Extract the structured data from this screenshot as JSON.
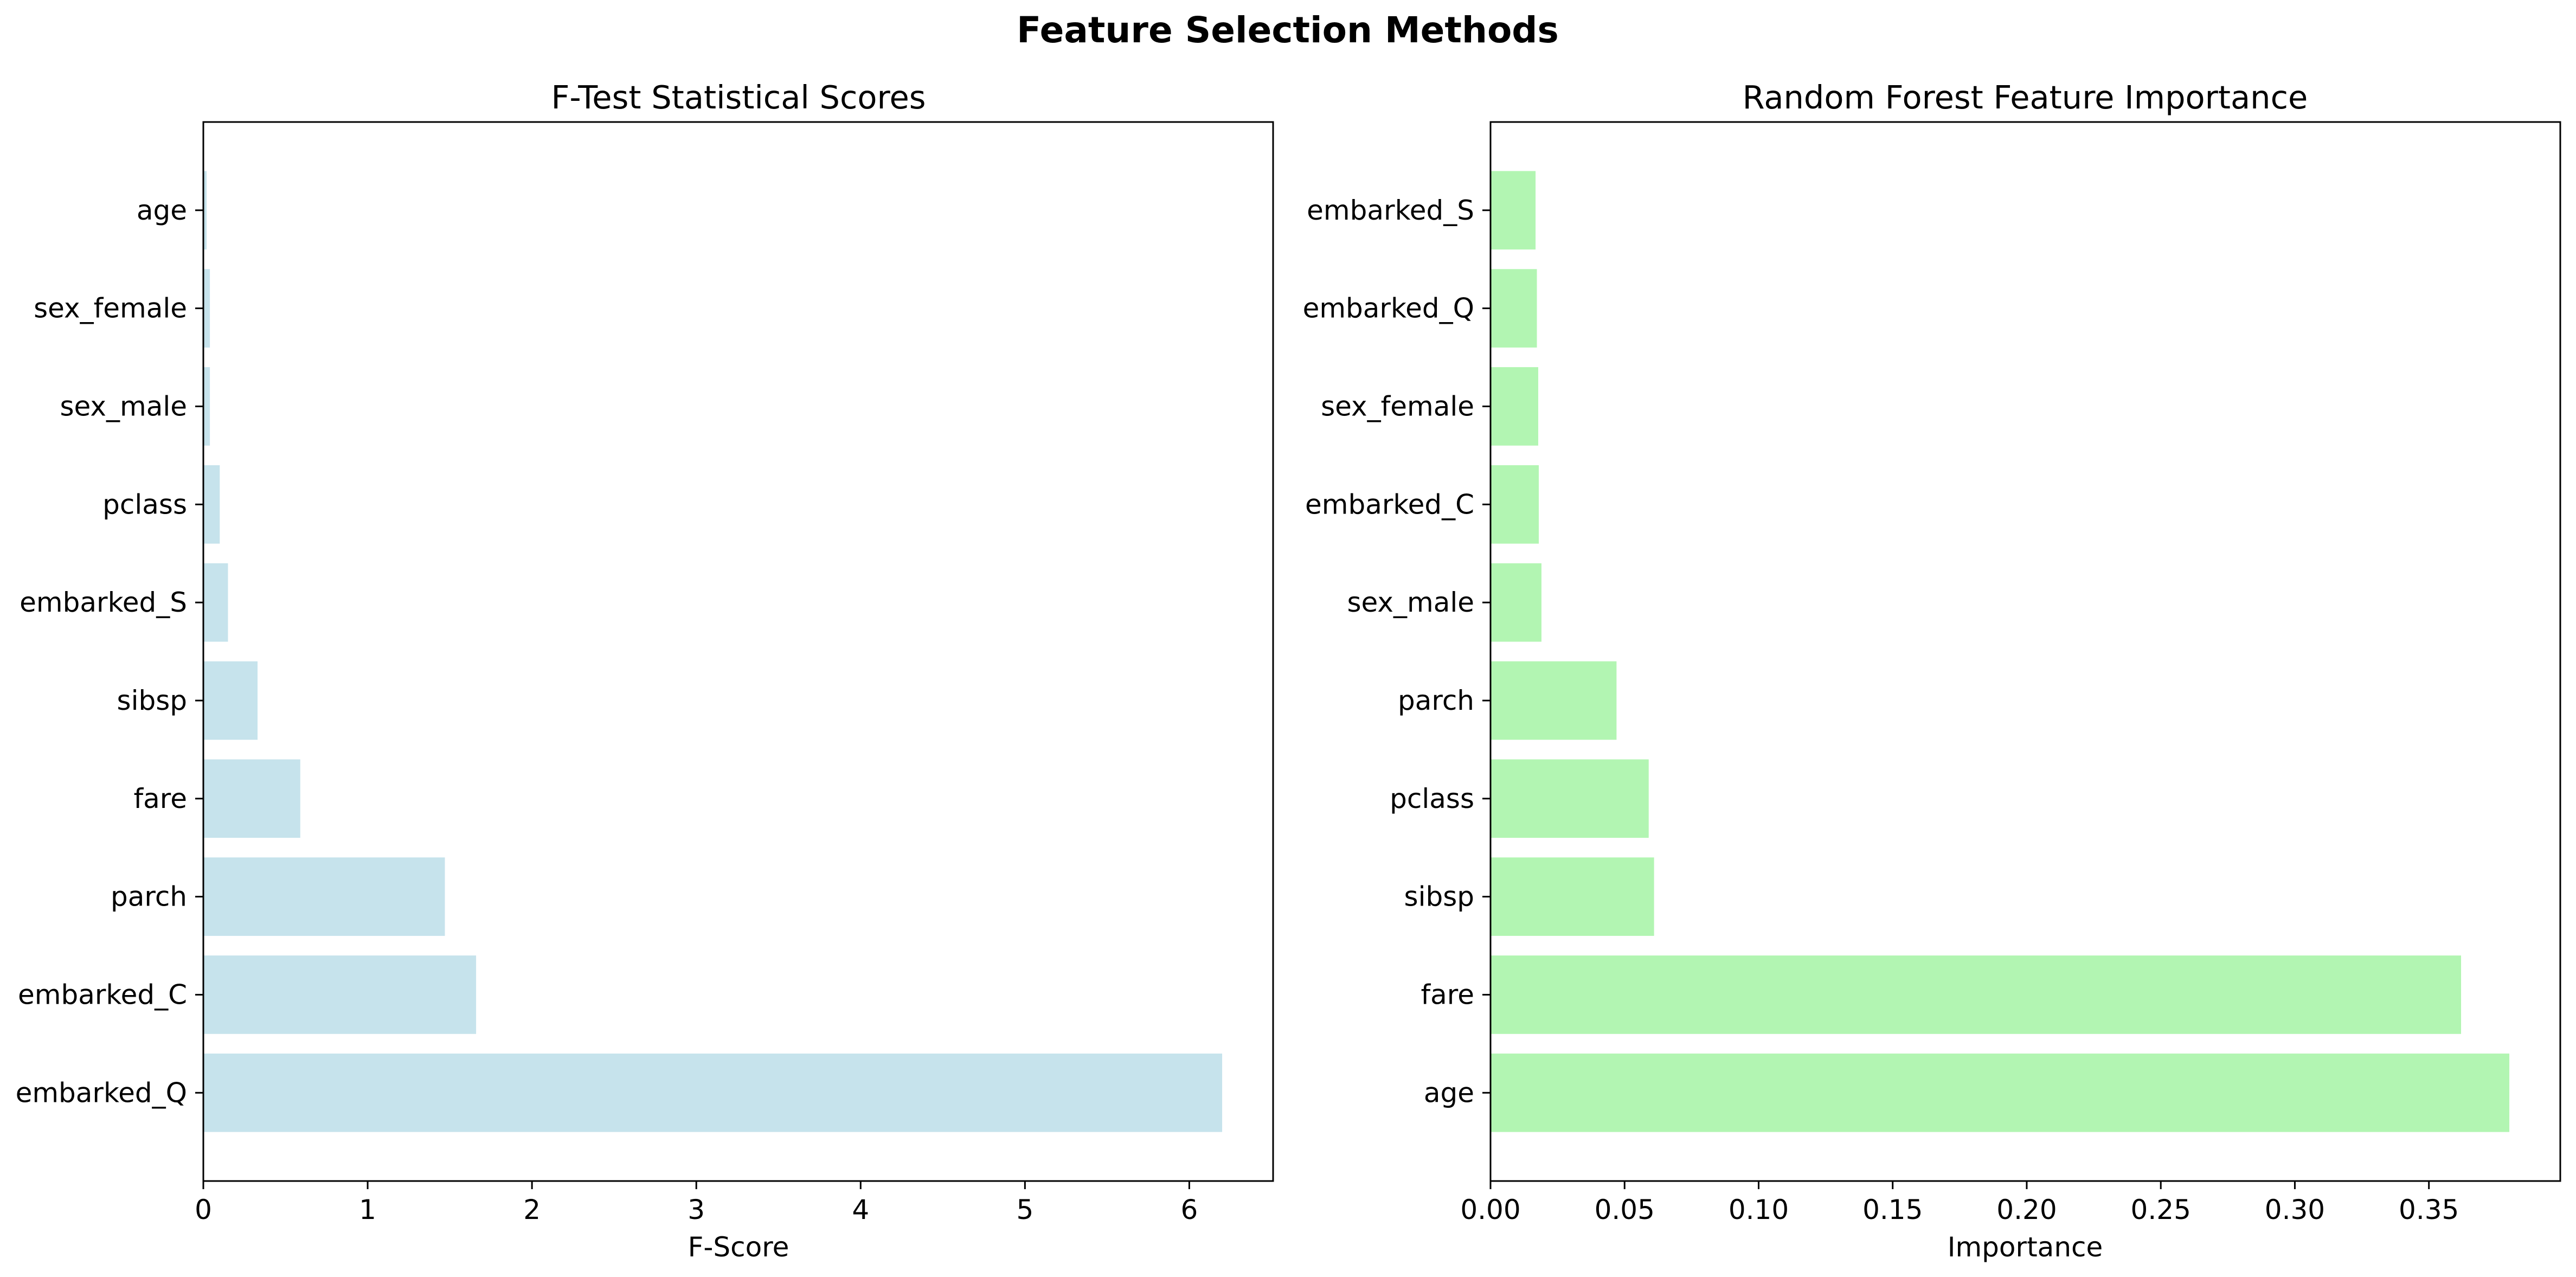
{
  "figure": {
    "title": "Feature Selection Methods"
  },
  "chart_data": [
    {
      "type": "bar",
      "orientation": "horizontal",
      "title": "F-Test Statistical Scores",
      "xlabel": "F-Score",
      "ylabel": "",
      "categories": [
        "embarked_Q",
        "embarked_C",
        "parch",
        "fare",
        "sibsp",
        "embarked_S",
        "pclass",
        "sex_male",
        "sex_female",
        "age"
      ],
      "values": [
        6.2,
        1.66,
        1.47,
        0.59,
        0.33,
        0.15,
        0.1,
        0.04,
        0.04,
        0.02
      ],
      "xlim": [
        0,
        6.51
      ],
      "xticks": [
        0,
        1,
        2,
        3,
        4,
        5,
        6
      ],
      "xtick_labels": [
        "0",
        "1",
        "2",
        "3",
        "4",
        "5",
        "6"
      ],
      "bar_color": "#c6e3ec",
      "grid": false,
      "legend": "none"
    },
    {
      "type": "bar",
      "orientation": "horizontal",
      "title": "Random Forest Feature Importance",
      "xlabel": "Importance",
      "ylabel": "",
      "categories": [
        "age",
        "fare",
        "sibsp",
        "pclass",
        "parch",
        "sex_male",
        "embarked_C",
        "sex_female",
        "embarked_Q",
        "embarked_S"
      ],
      "values": [
        0.38,
        0.362,
        0.061,
        0.059,
        0.047,
        0.019,
        0.018,
        0.0178,
        0.0173,
        0.0168
      ],
      "xlim": [
        0,
        0.399
      ],
      "xticks": [
        0,
        0.05,
        0.1,
        0.15,
        0.2,
        0.25,
        0.3,
        0.35
      ],
      "xtick_labels": [
        "0.00",
        "0.05",
        "0.10",
        "0.15",
        "0.20",
        "0.25",
        "0.30",
        "0.35"
      ],
      "bar_color": "#b2f5b2",
      "grid": false,
      "legend": "none"
    }
  ]
}
